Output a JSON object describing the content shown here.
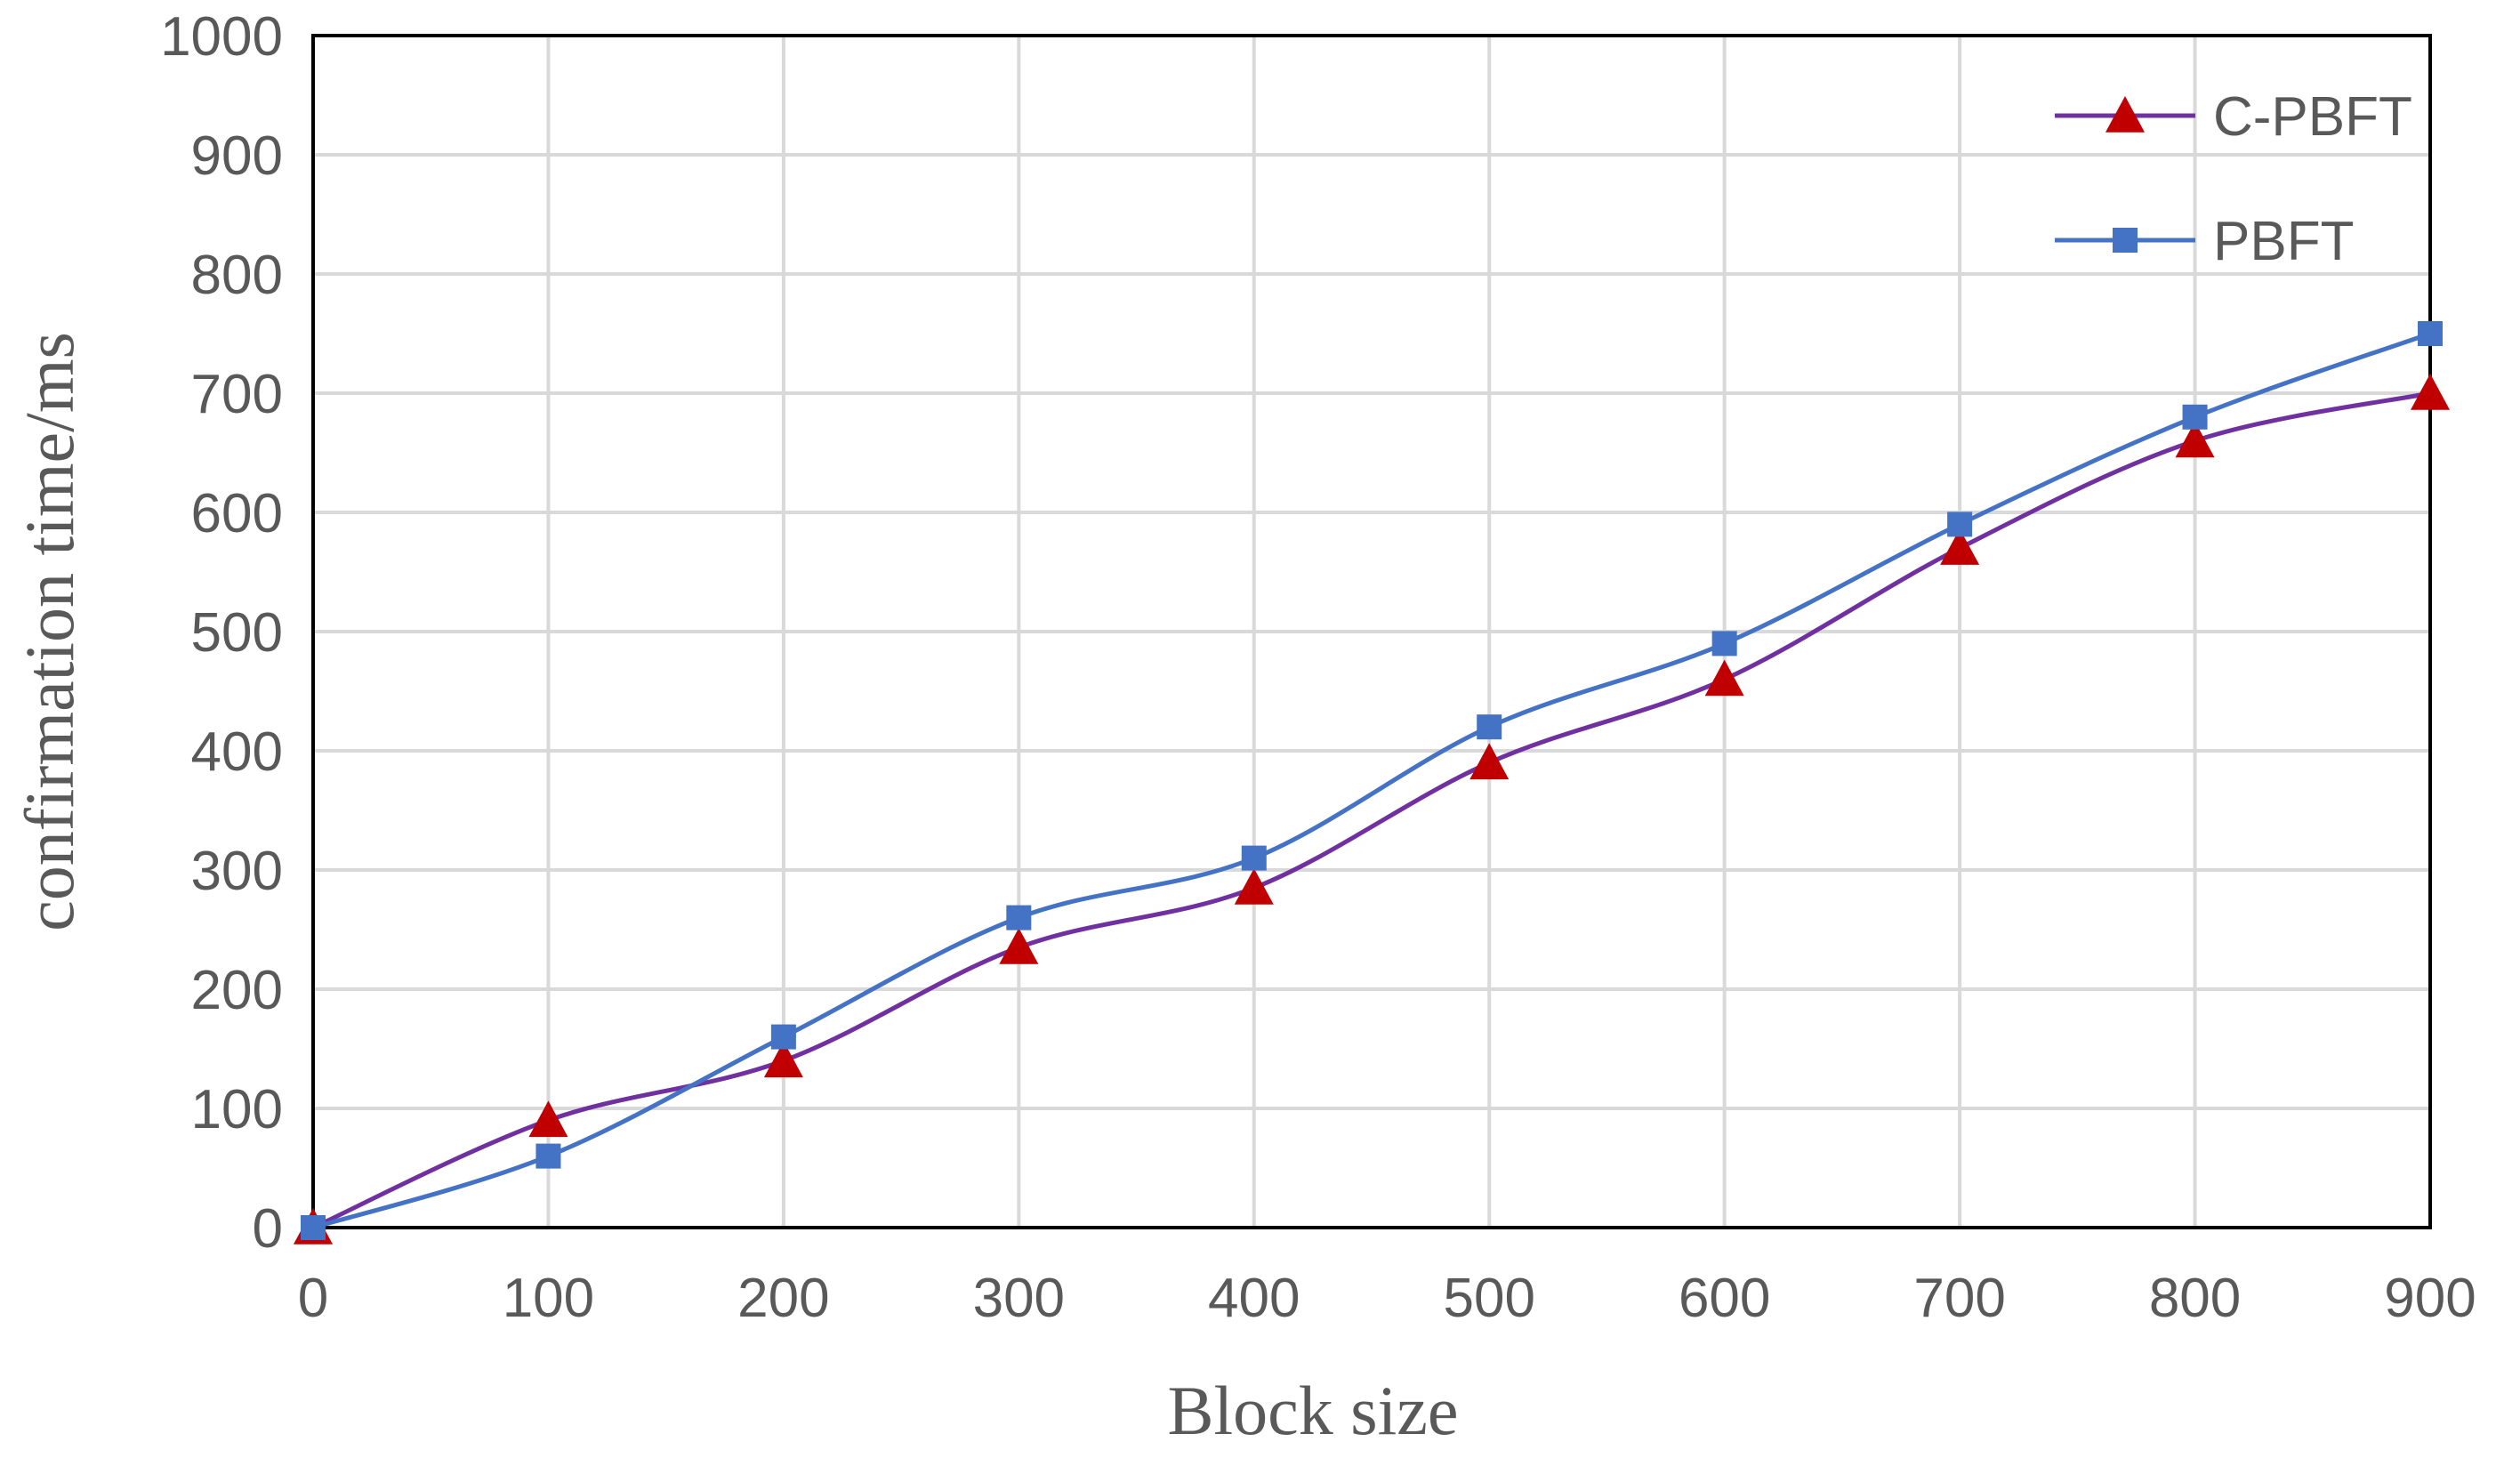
{
  "chart_data": {
    "type": "line",
    "title": "",
    "xlabel": "Block size",
    "ylabel": "confirmation time/ms",
    "x": [
      0,
      100,
      200,
      300,
      400,
      500,
      600,
      700,
      800,
      900
    ],
    "xlim": [
      0,
      900
    ],
    "ylim": [
      0,
      1000
    ],
    "x_ticks": [
      "0",
      "100",
      "200",
      "300",
      "400",
      "500",
      "600",
      "700",
      "800",
      "900"
    ],
    "y_ticks": [
      "0",
      "100",
      "200",
      "300",
      "400",
      "500",
      "600",
      "700",
      "800",
      "900",
      "1000"
    ],
    "grid": true,
    "legend_position": "top-right",
    "series": [
      {
        "name": "C-PBFT",
        "values": [
          0,
          90,
          140,
          235,
          285,
          390,
          460,
          570,
          660,
          700
        ],
        "color": "#7030a0",
        "marker": "triangle",
        "marker_color": "#c00000"
      },
      {
        "name": "PBFT",
        "values": [
          0,
          60,
          160,
          260,
          310,
          420,
          490,
          590,
          680,
          750
        ],
        "color": "#4472c4",
        "marker": "square",
        "marker_color": "#4472c4"
      }
    ]
  }
}
